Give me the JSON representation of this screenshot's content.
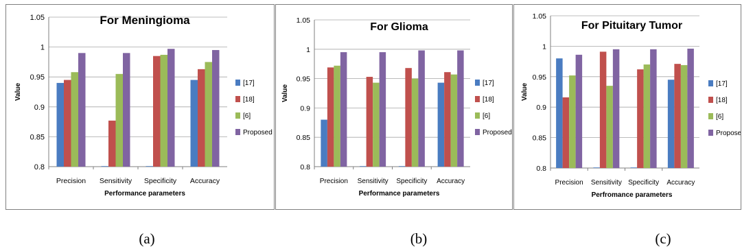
{
  "chart_data": [
    {
      "type": "bar",
      "title": "For Meningioma",
      "xlabel": "Performance parameters",
      "ylabel": "Value",
      "ylim": [
        0.8,
        1.05
      ],
      "yticks": [
        "0.8",
        "0.85",
        "0.9",
        "0.95",
        "1",
        "1.05"
      ],
      "grid": true,
      "legend": "right",
      "categories": [
        "Precision",
        "Sensitivity",
        "Specificity",
        "Accuracy"
      ],
      "series": [
        {
          "name": "[17]",
          "color": "#4a7cc1",
          "values": [
            0.94,
            0.8,
            0.8,
            0.945
          ]
        },
        {
          "name": "[18]",
          "color": "#c0504d",
          "values": [
            0.945,
            0.877,
            0.985,
            0.963
          ]
        },
        {
          "name": "[6]",
          "color": "#9bbb59",
          "values": [
            0.958,
            0.955,
            0.987,
            0.975
          ]
        },
        {
          "name": "Proposed",
          "color": "#8064a2",
          "values": [
            0.99,
            0.99,
            0.997,
            0.995
          ]
        }
      ],
      "caption": "(a)"
    },
    {
      "type": "bar",
      "title": "For Glioma",
      "xlabel": "Performance parameters",
      "ylabel": "Value",
      "ylim": [
        0.8,
        1.05
      ],
      "yticks": [
        "0.8",
        "0.85",
        "0.9",
        "0.95",
        "1",
        "1.05"
      ],
      "grid": true,
      "legend": "right",
      "categories": [
        "Precision",
        "Sensitivity",
        "Specificity",
        "Accuracy"
      ],
      "series": [
        {
          "name": "[17]",
          "color": "#4a7cc1",
          "values": [
            0.88,
            0.8,
            0.8,
            0.943
          ]
        },
        {
          "name": "[18]",
          "color": "#c0504d",
          "values": [
            0.969,
            0.953,
            0.968,
            0.961
          ]
        },
        {
          "name": "[6]",
          "color": "#9bbb59",
          "values": [
            0.972,
            0.943,
            0.95,
            0.957
          ]
        },
        {
          "name": "Proposed",
          "color": "#8064a2",
          "values": [
            0.995,
            0.995,
            0.998,
            0.998
          ]
        }
      ],
      "caption": "(b)"
    },
    {
      "type": "bar",
      "title": "For Pituitary Tumor",
      "xlabel": "Perfromance parameters",
      "ylabel": "Value",
      "ylim": [
        0.8,
        1.05
      ],
      "yticks": [
        "0.8",
        "0.85",
        "0.9",
        "0.95",
        "1",
        "1.05"
      ],
      "grid": true,
      "legend": "right",
      "categories": [
        "Precision",
        "Sensitivity",
        "Specificity",
        "Accuracy"
      ],
      "series": [
        {
          "name": "[17]",
          "color": "#4a7cc1",
          "values": [
            0.98,
            0.8,
            0.8,
            0.945
          ]
        },
        {
          "name": "[18]",
          "color": "#c0504d",
          "values": [
            0.916,
            0.991,
            0.962,
            0.971
          ]
        },
        {
          "name": "[6]",
          "color": "#9bbb59",
          "values": [
            0.952,
            0.935,
            0.97,
            0.969
          ]
        },
        {
          "name": "Proposed",
          "color": "#8064a2",
          "values": [
            0.986,
            0.995,
            0.995,
            0.996
          ]
        }
      ],
      "caption": "(c)"
    }
  ]
}
